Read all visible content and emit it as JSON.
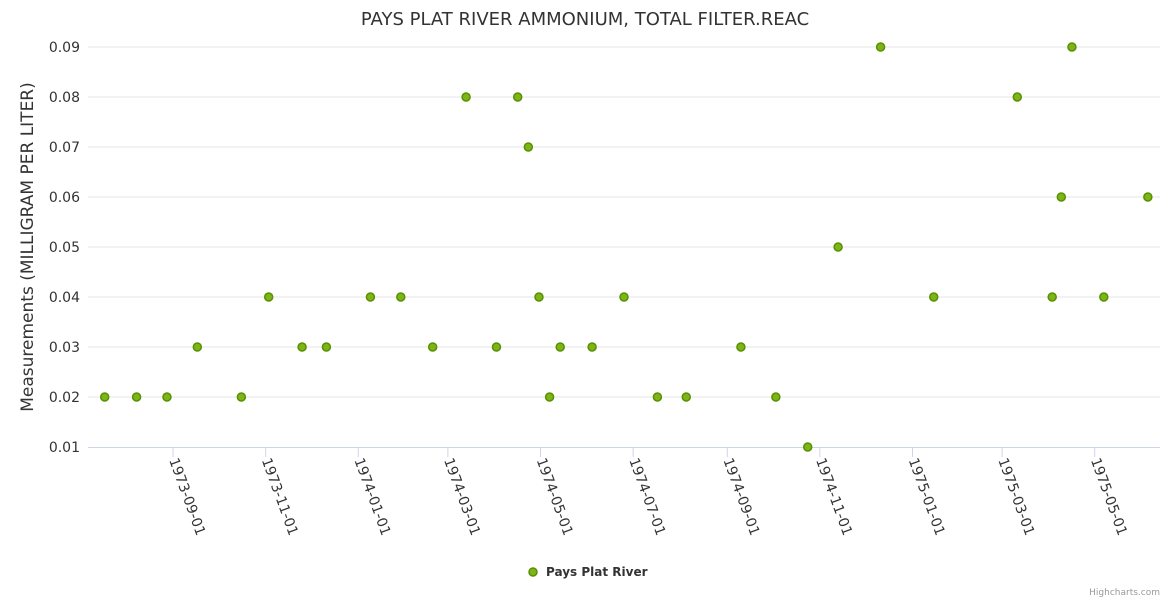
{
  "chart_data": {
    "type": "scatter",
    "title": "PAYS PLAT RIVER AMMONIUM, TOTAL FILTER.REAC",
    "xlabel": "",
    "ylabel": "Measurements (MILLIGRAM PER LITER)",
    "xlim": [
      "1973-07-07",
      "1975-06-13"
    ],
    "ylim": [
      0.01,
      0.09
    ],
    "yticks": [
      "0.01",
      "0.02",
      "0.03",
      "0.04",
      "0.05",
      "0.06",
      "0.07",
      "0.08",
      "0.09"
    ],
    "xticks": [
      "1973-09-01",
      "1973-11-01",
      "1974-01-01",
      "1974-03-01",
      "1974-05-01",
      "1974-07-01",
      "1974-09-01",
      "1974-11-01",
      "1975-01-01",
      "1975-03-01",
      "1975-05-01"
    ],
    "grid": true,
    "legend_position": "bottom-center",
    "series": [
      {
        "name": "Pays Plat River",
        "color": "#7cb518",
        "outline": "#5a8f00",
        "points": [
          [
            "1973-07-18",
            0.02
          ],
          [
            "1973-08-08",
            0.02
          ],
          [
            "1973-08-28",
            0.02
          ],
          [
            "1973-09-17",
            0.03
          ],
          [
            "1973-10-16",
            0.02
          ],
          [
            "1973-11-03",
            0.04
          ],
          [
            "1973-11-25",
            0.03
          ],
          [
            "1973-12-11",
            0.03
          ],
          [
            "1974-01-09",
            0.04
          ],
          [
            "1974-01-29",
            0.04
          ],
          [
            "1974-02-19",
            0.03
          ],
          [
            "1974-03-13",
            0.08
          ],
          [
            "1974-04-02",
            0.03
          ],
          [
            "1974-04-16",
            0.08
          ],
          [
            "1974-04-23",
            0.07
          ],
          [
            "1974-04-30",
            0.04
          ],
          [
            "1974-05-07",
            0.02
          ],
          [
            "1974-05-14",
            0.03
          ],
          [
            "1974-06-04",
            0.03
          ],
          [
            "1974-06-25",
            0.04
          ],
          [
            "1974-07-17",
            0.02
          ],
          [
            "1974-08-05",
            0.02
          ],
          [
            "1974-09-10",
            0.03
          ],
          [
            "1974-10-03",
            0.02
          ],
          [
            "1974-10-24",
            0.01
          ],
          [
            "1974-11-13",
            0.05
          ],
          [
            "1974-12-11",
            0.09
          ],
          [
            "1975-01-15",
            0.04
          ],
          [
            "1975-03-11",
            0.08
          ],
          [
            "1975-04-03",
            0.04
          ],
          [
            "1975-04-09",
            0.06
          ],
          [
            "1975-04-16",
            0.09
          ],
          [
            "1975-05-07",
            0.04
          ],
          [
            "1975-06-05",
            0.06
          ]
        ]
      }
    ]
  },
  "credits": "Highcharts.com"
}
